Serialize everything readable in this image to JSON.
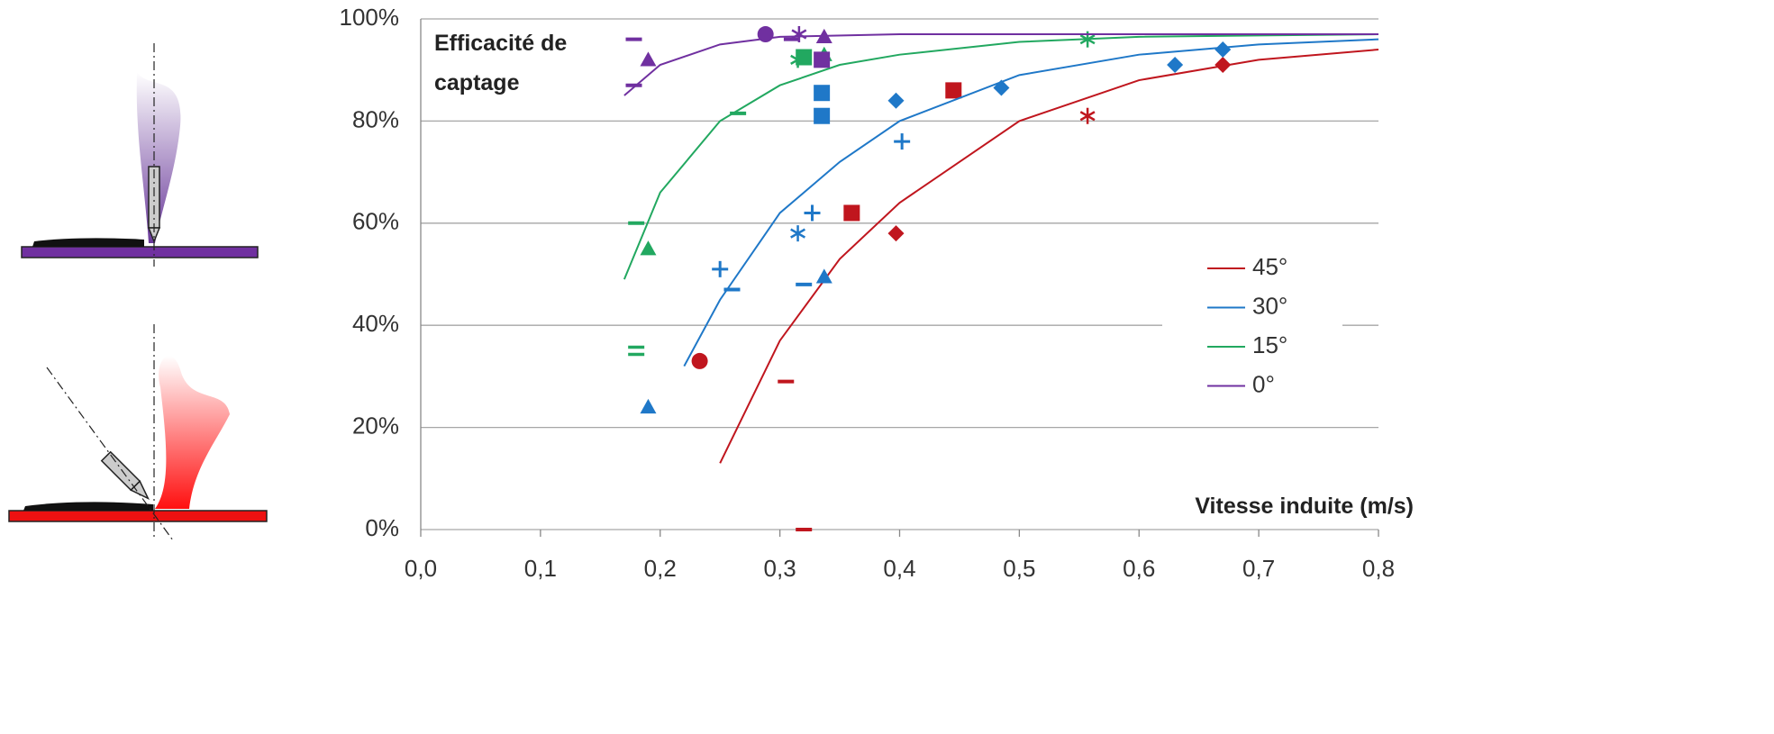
{
  "chart_data": {
    "type": "scatter-fit",
    "y_label": "Efficacité de captage",
    "x_label": "Vitesse induite (m/s)",
    "xlim": [
      0,
      0.8
    ],
    "xticks": [
      {
        "value": 0,
        "label": "0,0"
      },
      {
        "value": 0.1,
        "label": "0,1"
      },
      {
        "value": 0.2,
        "label": "0,2"
      },
      {
        "value": 0.3,
        "label": "0,3"
      },
      {
        "value": 0.4,
        "label": "0,4"
      },
      {
        "value": 0.5,
        "label": "0,5"
      },
      {
        "value": 0.6,
        "label": "0,6"
      },
      {
        "value": 0.7,
        "label": "0,7"
      },
      {
        "value": 0.8,
        "label": "0,8"
      }
    ],
    "ylim": [
      0,
      100
    ],
    "yticks": [
      {
        "value": 0,
        "label": "0%"
      },
      {
        "value": 20,
        "label": "20%"
      },
      {
        "value": 40,
        "label": "40%"
      },
      {
        "value": 60,
        "label": "60%"
      },
      {
        "value": 80,
        "label": "80%"
      },
      {
        "value": 100,
        "label": "100%"
      }
    ],
    "grid": true,
    "legend": "right",
    "series": [
      {
        "name": "45°",
        "color": "#c0161e",
        "x": [
          0.25,
          0.3,
          0.35,
          0.4,
          0.5,
          0.6,
          0.7,
          0.8
        ],
        "values": [
          13,
          37,
          53,
          64,
          80,
          88,
          92,
          94
        ],
        "points": {
          "markers": [
            "dash",
            "dash",
            "circle",
            "square",
            "diamond",
            "square",
            "asterisk",
            "diamond"
          ],
          "x": [
            0.32,
            0.305,
            0.233,
            0.36,
            0.397,
            0.445,
            0.557,
            0.67
          ],
          "values": [
            0,
            29,
            33,
            62,
            58,
            86,
            81,
            91
          ]
        }
      },
      {
        "name": "30°",
        "color": "#1f78c8",
        "x": [
          0.22,
          0.25,
          0.3,
          0.35,
          0.4,
          0.5,
          0.6,
          0.7,
          0.8
        ],
        "values": [
          32,
          45,
          62,
          72,
          80,
          89,
          93,
          95,
          96
        ],
        "points": {
          "markers": [
            "triangle",
            "dash",
            "plus",
            "dash",
            "triangle",
            "asterisk",
            "plus",
            "square",
            "square",
            "diamond",
            "plus",
            "diamond",
            "diamond",
            "diamond"
          ],
          "x": [
            0.19,
            0.26,
            0.25,
            0.32,
            0.337,
            0.315,
            0.327,
            0.335,
            0.335,
            0.397,
            0.402,
            0.485,
            0.63,
            0.67
          ],
          "values": [
            24,
            47,
            51,
            48,
            49.5,
            58,
            62,
            81,
            85.5,
            84,
            76,
            86.5,
            91,
            94
          ]
        }
      },
      {
        "name": "15°",
        "color": "#22a860",
        "x": [
          0.17,
          0.2,
          0.25,
          0.3,
          0.35,
          0.4,
          0.5,
          0.6,
          0.8
        ],
        "values": [
          49,
          66,
          80,
          87,
          91,
          93,
          95.5,
          96.5,
          97
        ],
        "points": {
          "markers": [
            "equals",
            "dash",
            "triangle",
            "dash",
            "asterisk",
            "square",
            "triangle",
            "asterisk"
          ],
          "x": [
            0.18,
            0.18,
            0.19,
            0.265,
            0.315,
            0.32,
            0.337,
            0.557
          ],
          "values": [
            35,
            60,
            55,
            81.5,
            92,
            92.5,
            93,
            96
          ]
        }
      },
      {
        "name": "0°",
        "color": "#7030a0",
        "x": [
          0.17,
          0.2,
          0.25,
          0.3,
          0.4,
          0.8
        ],
        "values": [
          85,
          91,
          95,
          96.5,
          97,
          97
        ],
        "points": {
          "markers": [
            "dash",
            "dash",
            "triangle",
            "circle",
            "asterisk",
            "dash",
            "triangle",
            "square"
          ],
          "x": [
            0.178,
            0.178,
            0.19,
            0.288,
            0.316,
            0.31,
            0.337,
            0.335
          ],
          "values": [
            96,
            87,
            92,
            97,
            97,
            96,
            96.5,
            92
          ]
        }
      }
    ]
  }
}
